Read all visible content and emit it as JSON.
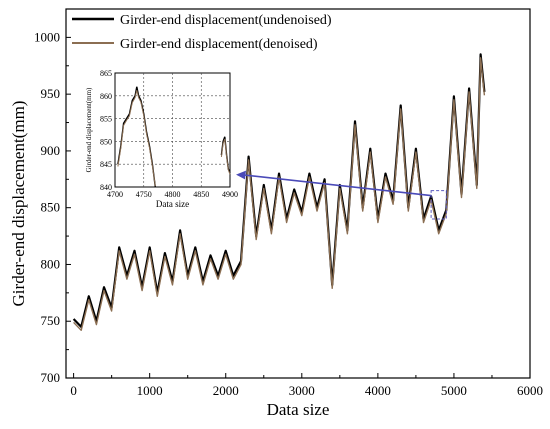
{
  "chart_data": [
    {
      "type": "line",
      "xlabel": "Data size",
      "ylabel": "Girder-end displacement(mm)",
      "xlim": [
        -100,
        6000
      ],
      "ylim": [
        700,
        1025
      ],
      "xticks": [
        0,
        1000,
        2000,
        3000,
        4000,
        5000,
        6000
      ],
      "yticks": [
        700,
        750,
        800,
        850,
        900,
        950,
        1000
      ],
      "grid": false,
      "legend_placement": "top-left",
      "x": [
        0,
        100,
        200,
        300,
        400,
        500,
        600,
        700,
        800,
        900,
        1000,
        1100,
        1200,
        1300,
        1400,
        1500,
        1600,
        1700,
        1800,
        1900,
        2000,
        2100,
        2200,
        2300,
        2400,
        2500,
        2600,
        2700,
        2800,
        2900,
        3000,
        3100,
        3200,
        3300,
        3400,
        3500,
        3600,
        3700,
        3800,
        3900,
        4000,
        4100,
        4200,
        4300,
        4400,
        4500,
        4600,
        4700,
        4800,
        4900,
        5000,
        5100,
        5200,
        5300,
        5350,
        5400
      ],
      "series": [
        {
          "name": "Girder-end displacement(undenoised)",
          "color": "#000000",
          "values": [
            752,
            745,
            772,
            750,
            780,
            762,
            815,
            790,
            812,
            780,
            815,
            775,
            810,
            785,
            830,
            790,
            815,
            785,
            808,
            790,
            812,
            790,
            803,
            895,
            825,
            870,
            830,
            880,
            840,
            866,
            846,
            880,
            850,
            875,
            782,
            870,
            830,
            926,
            850,
            902,
            840,
            880,
            856,
            940,
            850,
            902,
            840,
            860,
            830,
            848,
            948,
            862,
            955,
            870,
            985,
            952
          ]
        },
        {
          "name": "Girder-end displacement(denoised)",
          "color": "#8b6e52",
          "values": [
            749,
            742,
            769,
            747,
            777,
            759,
            812,
            787,
            809,
            777,
            812,
            772,
            807,
            782,
            827,
            787,
            812,
            782,
            805,
            787,
            809,
            787,
            800,
            892,
            822,
            867,
            827,
            877,
            837,
            863,
            843,
            877,
            847,
            872,
            779,
            867,
            827,
            923,
            847,
            899,
            837,
            877,
            853,
            937,
            847,
            899,
            837,
            857,
            827,
            845,
            945,
            859,
            952,
            867,
            982,
            949
          ]
        }
      ]
    },
    {
      "type": "line",
      "xlabel": "Data size",
      "ylabel": "Girder-end displacement(mm)",
      "xlim": [
        4700,
        4900
      ],
      "ylim": [
        840,
        865
      ],
      "xticks": [
        4700,
        4750,
        4800,
        4850,
        4900
      ],
      "yticks": [
        840,
        845,
        850,
        855,
        860,
        865
      ],
      "grid": true,
      "x": [
        4705,
        4710,
        4715,
        4720,
        4725,
        4730,
        4735,
        4738,
        4741,
        4745,
        4750,
        4755,
        4760,
        4765,
        4770,
        4885,
        4888,
        4891,
        4894,
        4897,
        4900
      ],
      "series": [
        {
          "name": "Girder-end displacement(undenoised)",
          "color": "#000000",
          "values": [
            845,
            849,
            854,
            855,
            856,
            859,
            860,
            862,
            860,
            859,
            856,
            852,
            849,
            845,
            840,
            847,
            850,
            851,
            847,
            844,
            843
          ]
        },
        {
          "name": "Girder-end displacement(denoised)",
          "color": "#8b6e52",
          "values": [
            844.5,
            848.5,
            853.5,
            854.6,
            855.6,
            858.5,
            859.6,
            861.2,
            859.6,
            858.6,
            855.6,
            851.6,
            848.6,
            844.6,
            840.2,
            846.6,
            849.5,
            850.5,
            846.6,
            843.8,
            842.8
          ]
        }
      ]
    }
  ]
}
